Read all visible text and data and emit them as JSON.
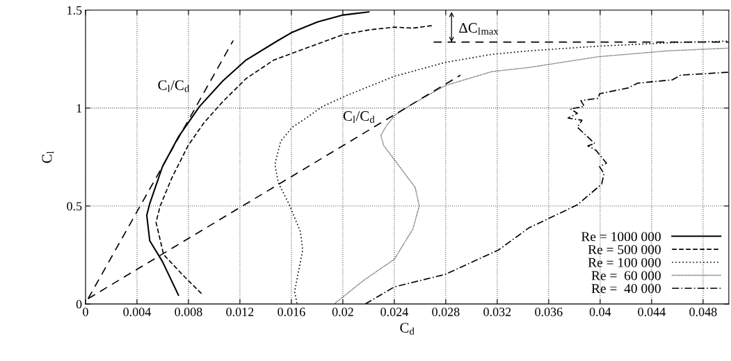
{
  "chart_data": {
    "type": "line",
    "xlabel": "C$_{d}$",
    "ylabel": "C$_{l}$",
    "xlim": [
      0,
      0.05
    ],
    "ylim": [
      0,
      1.5
    ],
    "xticks": [
      0,
      0.004,
      0.008,
      0.012,
      0.016,
      0.02,
      0.024,
      0.028,
      0.032,
      0.036,
      0.04,
      0.044,
      0.048
    ],
    "yticks": [
      0,
      0.5,
      1,
      1.5
    ],
    "grid": true,
    "legend": "bottom right",
    "series": [
      {
        "name": "Re = 1000 000",
        "color": "#000000",
        "line_style": "solid",
        "x": [
          0.00722,
          0.00598,
          0.00499,
          0.00476,
          0.00499,
          0.00598,
          0.00724,
          0.00886,
          0.01066,
          0.01247,
          0.01481,
          0.01607,
          0.01715,
          0.01805,
          0.02003,
          0.02202
        ],
        "values": [
          0.045,
          0.216,
          0.323,
          0.453,
          0.512,
          0.701,
          0.855,
          1.008,
          1.138,
          1.245,
          1.339,
          1.387,
          1.416,
          1.44,
          1.475,
          1.491
        ]
      },
      {
        "name": "Re = 500 000",
        "color": "#000000",
        "line_style": "dashed",
        "x": [
          0.00901,
          0.0076,
          0.00607,
          0.00548,
          0.0058,
          0.0067,
          0.00796,
          0.00922,
          0.01066,
          0.01247,
          0.01463,
          0.01715,
          0.02003,
          0.02202,
          0.024,
          0.02544,
          0.02706
        ],
        "values": [
          0.053,
          0.145,
          0.252,
          0.417,
          0.5,
          0.642,
          0.807,
          0.926,
          1.032,
          1.15,
          1.245,
          1.306,
          1.375,
          1.399,
          1.413,
          1.408,
          1.422
        ]
      },
      {
        "name": "Re = 100 000",
        "color": "#000000",
        "line_style": "dotted",
        "x": [
          0.01643,
          0.01625,
          0.01688,
          0.0167,
          0.0158,
          0.01499,
          0.01472,
          0.01517,
          0.01607,
          0.01715,
          0.01841,
          0.0204,
          0.024,
          0.02796,
          0.03157,
          0.03445,
          0.03985,
          0.04526,
          0.05
        ],
        "values": [
          0.004,
          0.063,
          0.276,
          0.37,
          0.512,
          0.618,
          0.713,
          0.831,
          0.902,
          0.949,
          1.008,
          1.067,
          1.162,
          1.233,
          1.274,
          1.292,
          1.316,
          1.333,
          1.342
        ]
      },
      {
        "name": "Re =  60 000",
        "color": "#000000",
        "line_style": "dotted",
        "x": [
          0.0194,
          0.02165,
          0.024,
          0.02544,
          0.02594,
          0.02562,
          0.024,
          0.02319,
          0.02295,
          0.02337,
          0.024,
          0.02508,
          0.02796,
          0.03157,
          0.03445,
          0.03985,
          0.04526,
          0.05
        ],
        "values": [
          0.004,
          0.122,
          0.228,
          0.382,
          0.5,
          0.595,
          0.737,
          0.807,
          0.861,
          0.908,
          0.961,
          1.008,
          1.115,
          1.186,
          1.207,
          1.262,
          1.292,
          1.306
        ]
      },
      {
        "name": "Re =  40 000",
        "color": "#000000",
        "line_style": "dashdot",
        "x": [
          0.02175,
          0.024,
          0.02796,
          0.03211,
          0.03445,
          0.03823,
          0.04012,
          0.0403,
          0.03995,
          0.04049,
          0.03968,
          0.03904,
          0.03958,
          0.03823,
          0.03859,
          0.03751,
          0.03823,
          0.03769,
          0.03877,
          0.0385,
          0.03985,
          0.03995,
          0.04219,
          0.04292,
          0.04562,
          0.04625,
          0.05
        ],
        "values": [
          0,
          0.087,
          0.151,
          0.276,
          0.388,
          0.506,
          0.612,
          0.666,
          0.701,
          0.719,
          0.784,
          0.807,
          0.819,
          0.902,
          0.938,
          0.949,
          0.973,
          0.996,
          1.008,
          1.038,
          1.05,
          1.073,
          1.103,
          1.127,
          1.144,
          1.168,
          1.183
        ]
      },
      {
        "color": "#000000",
        "line_style": "dashed",
        "x": [
          0.02706,
          0.05
        ],
        "values": [
          1.337,
          1.337
        ]
      },
      {
        "color": "#000000",
        "line_style": "dashed",
        "x": [
          0.0002,
          0.01148
        ],
        "values": [
          0.027,
          1.345
        ]
      },
      {
        "color": "#000000",
        "line_style": "dashed",
        "x": [
          0.0002,
          0.02914
        ],
        "values": [
          0.027,
          1.168
        ]
      }
    ],
    "annotations": [
      "C$_{l}$/C$_{d}$",
      "C$_{l}$/C$_{d}$",
      "ΔC$_{l}$$_{max}$"
    ]
  }
}
